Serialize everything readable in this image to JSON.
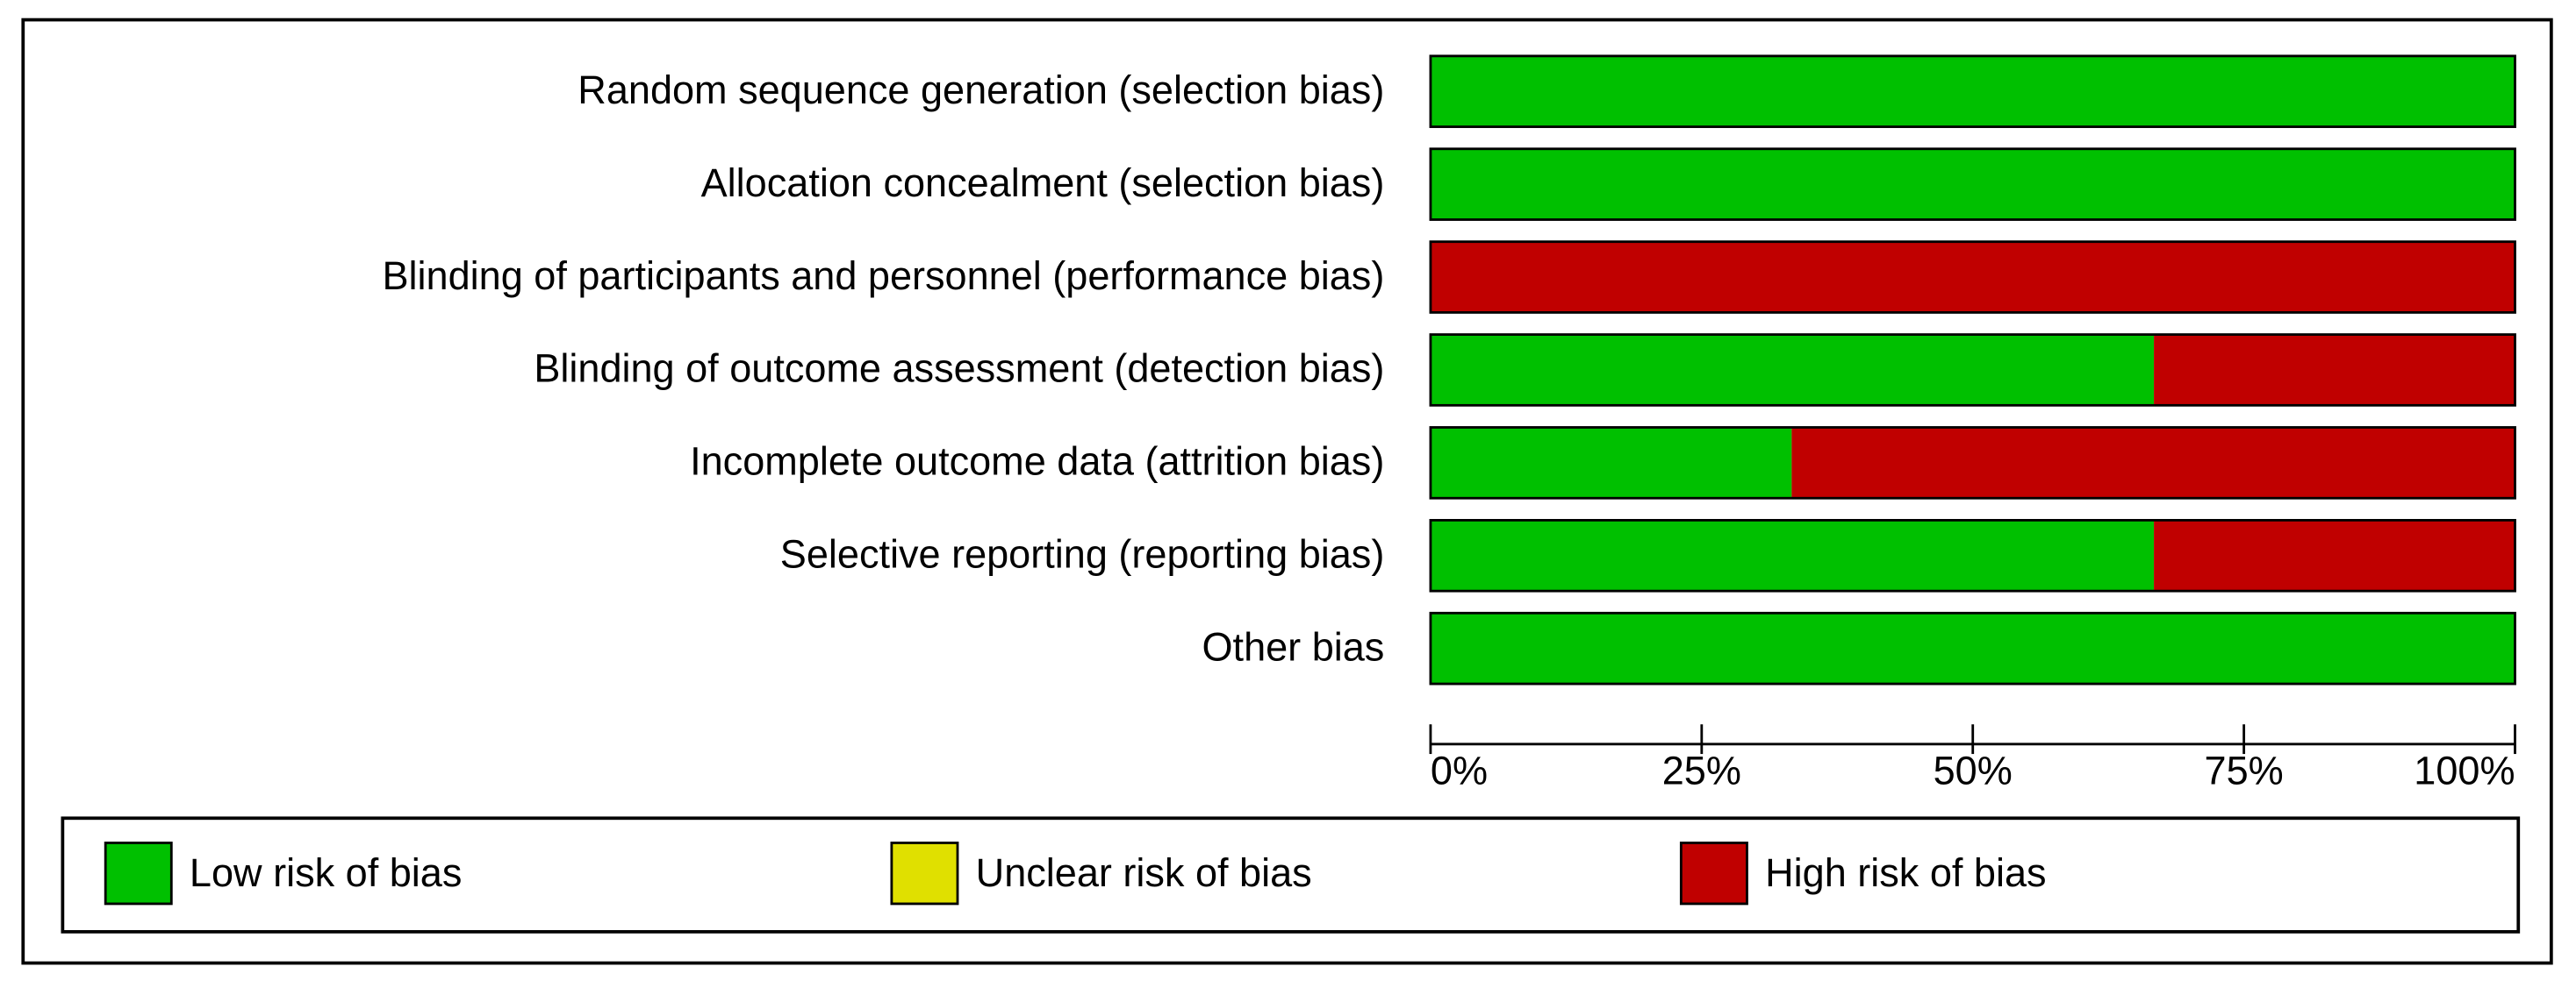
{
  "chart_data": {
    "type": "stacked-bar-horizontal",
    "categories": [
      "Random sequence generation (selection bias)",
      "Allocation concealment (selection bias)",
      "Blinding of participants and personnel (performance bias)",
      "Blinding of outcome assessment (detection bias)",
      "Incomplete outcome data (attrition bias)",
      "Selective reporting (reporting bias)",
      "Other bias"
    ],
    "series": [
      {
        "name": "Low risk of bias",
        "color": "#00c000",
        "values": [
          100,
          100,
          0,
          66.7,
          33.3,
          66.7,
          100
        ]
      },
      {
        "name": "Unclear risk of bias",
        "color": "#e0e000",
        "values": [
          0,
          0,
          0,
          0,
          0,
          0,
          0
        ]
      },
      {
        "name": "High risk of bias",
        "color": "#c00000",
        "values": [
          0,
          0,
          100,
          33.3,
          66.7,
          33.3,
          0
        ]
      }
    ],
    "xlim": [
      0,
      100
    ],
    "xticks": [
      {
        "value": 0,
        "label": "0%"
      },
      {
        "value": 25,
        "label": "25%"
      },
      {
        "value": 50,
        "label": "50%"
      },
      {
        "value": 75,
        "label": "75%"
      },
      {
        "value": 100,
        "label": "100%"
      }
    ],
    "legend": "bottom"
  }
}
